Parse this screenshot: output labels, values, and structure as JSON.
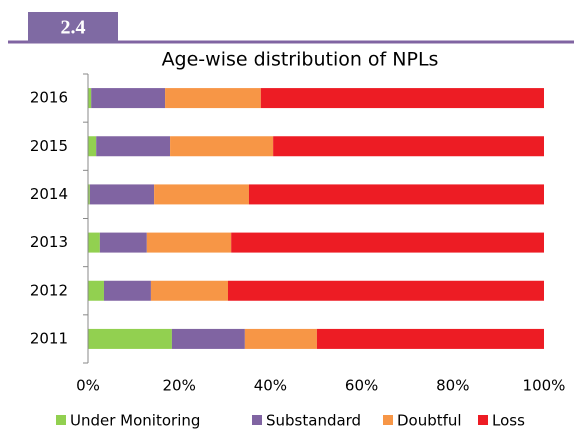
{
  "figure_label": "2.4",
  "chart_data": {
    "type": "stacked_hbar",
    "title": "Age-wise distribution of NPLs",
    "categories": [
      "2016",
      "2015",
      "2014",
      "2013",
      "2012",
      "2011"
    ],
    "series": [
      {
        "name": "Under Monitoring",
        "color": "#92d050",
        "values": [
          0.7,
          1.8,
          0.4,
          2.6,
          3.5,
          18.4
        ]
      },
      {
        "name": "Substandard",
        "color": "#8064a2",
        "values": [
          16.2,
          16.2,
          14.1,
          10.3,
          10.3,
          16.0
        ]
      },
      {
        "name": "Doubtful",
        "color": "#f79646",
        "values": [
          21.0,
          22.6,
          20.8,
          18.5,
          16.9,
          15.8
        ]
      },
      {
        "name": "Loss",
        "color": "#ed1c24",
        "values": [
          62.1,
          59.4,
          64.7,
          68.6,
          69.3,
          49.8
        ]
      }
    ],
    "xlim": [
      0,
      100
    ],
    "xticks": [
      {
        "value": 0,
        "label": "0%"
      },
      {
        "value": 20,
        "label": "20%"
      },
      {
        "value": 40,
        "label": "40%"
      },
      {
        "value": 60,
        "label": "60%"
      },
      {
        "value": 80,
        "label": "80%"
      },
      {
        "value": 100,
        "label": "100%"
      }
    ],
    "grid": false,
    "legend": "bottom"
  }
}
